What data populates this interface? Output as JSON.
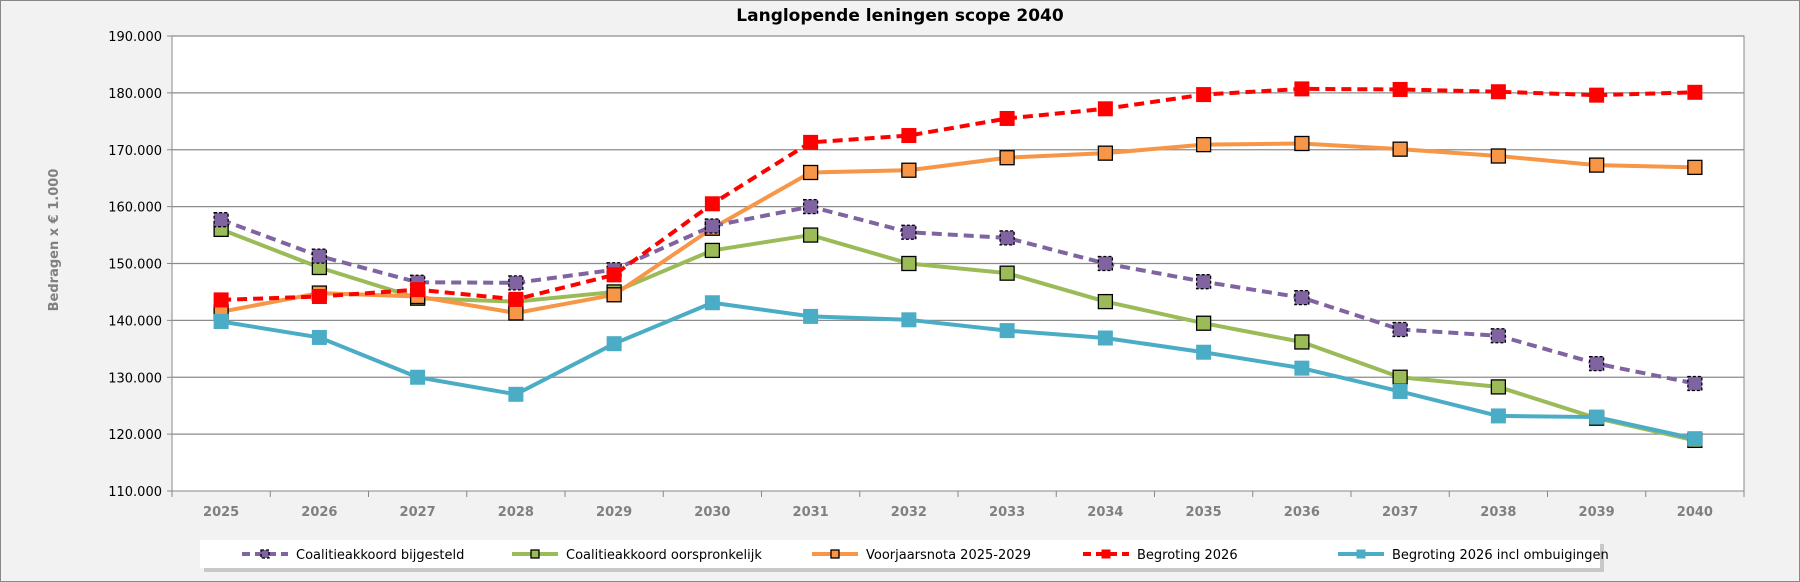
{
  "chart_data": {
    "type": "line",
    "title": "Langlopende leningen scope 2040",
    "xlabel": "",
    "ylabel": "Bedragen x € 1.000",
    "ylim": [
      110000,
      190000
    ],
    "yticks": [
      "110.000",
      "120.000",
      "130.000",
      "140.000",
      "150.000",
      "160.000",
      "170.000",
      "180.000",
      "190.000"
    ],
    "grid": true,
    "legend_position": "bottom",
    "categories": [
      "2025",
      "2026",
      "2027",
      "2028",
      "2029",
      "2030",
      "2031",
      "2032",
      "2033",
      "2034",
      "2035",
      "2036",
      "2037",
      "2038",
      "2039",
      "2040"
    ],
    "series": [
      {
        "name": "Coalitieakkoord bijgesteld",
        "color": "#8064a2",
        "dashed": true,
        "marker_fill": "#8064a2",
        "values": [
          157700,
          151300,
          146700,
          146600,
          148900,
          156600,
          160000,
          155500,
          154500,
          150000,
          146800,
          144000,
          138400,
          137300,
          132400,
          128900
        ]
      },
      {
        "name": "Coalitieakkoord oorspronkelijk",
        "color": "#9bbb59",
        "dashed": false,
        "marker_fill": "#9bbb59",
        "values": [
          156000,
          149300,
          143900,
          143300,
          145000,
          152300,
          155000,
          150000,
          148300,
          143300,
          139500,
          136200,
          130000,
          128300,
          122800,
          118900
        ]
      },
      {
        "name": "Voorjaarsnota 2025-2029",
        "color": "#f79646",
        "dashed": false,
        "marker_fill": "#f79646",
        "values": [
          141500,
          144800,
          144200,
          141300,
          144500,
          156200,
          166000,
          166400,
          168600,
          169400,
          170900,
          171100,
          170100,
          168900,
          167300,
          166900
        ]
      },
      {
        "name": "Begroting 2026",
        "color": "#ff0000",
        "dashed": true,
        "marker_fill": "#ff0000",
        "values": [
          143600,
          144200,
          145400,
          143700,
          148000,
          160500,
          171300,
          172500,
          175500,
          177200,
          179700,
          180700,
          180600,
          180200,
          179600,
          180100
        ]
      },
      {
        "name": "Begroting 2026 incl ombuigingen",
        "color": "#4bacc6",
        "dashed": false,
        "marker_fill": "#4bacc6",
        "values": [
          139800,
          137000,
          130000,
          127000,
          135900,
          143100,
          140700,
          140100,
          138200,
          136900,
          134400,
          131600,
          127500,
          123200,
          123000,
          119200
        ]
      }
    ]
  }
}
